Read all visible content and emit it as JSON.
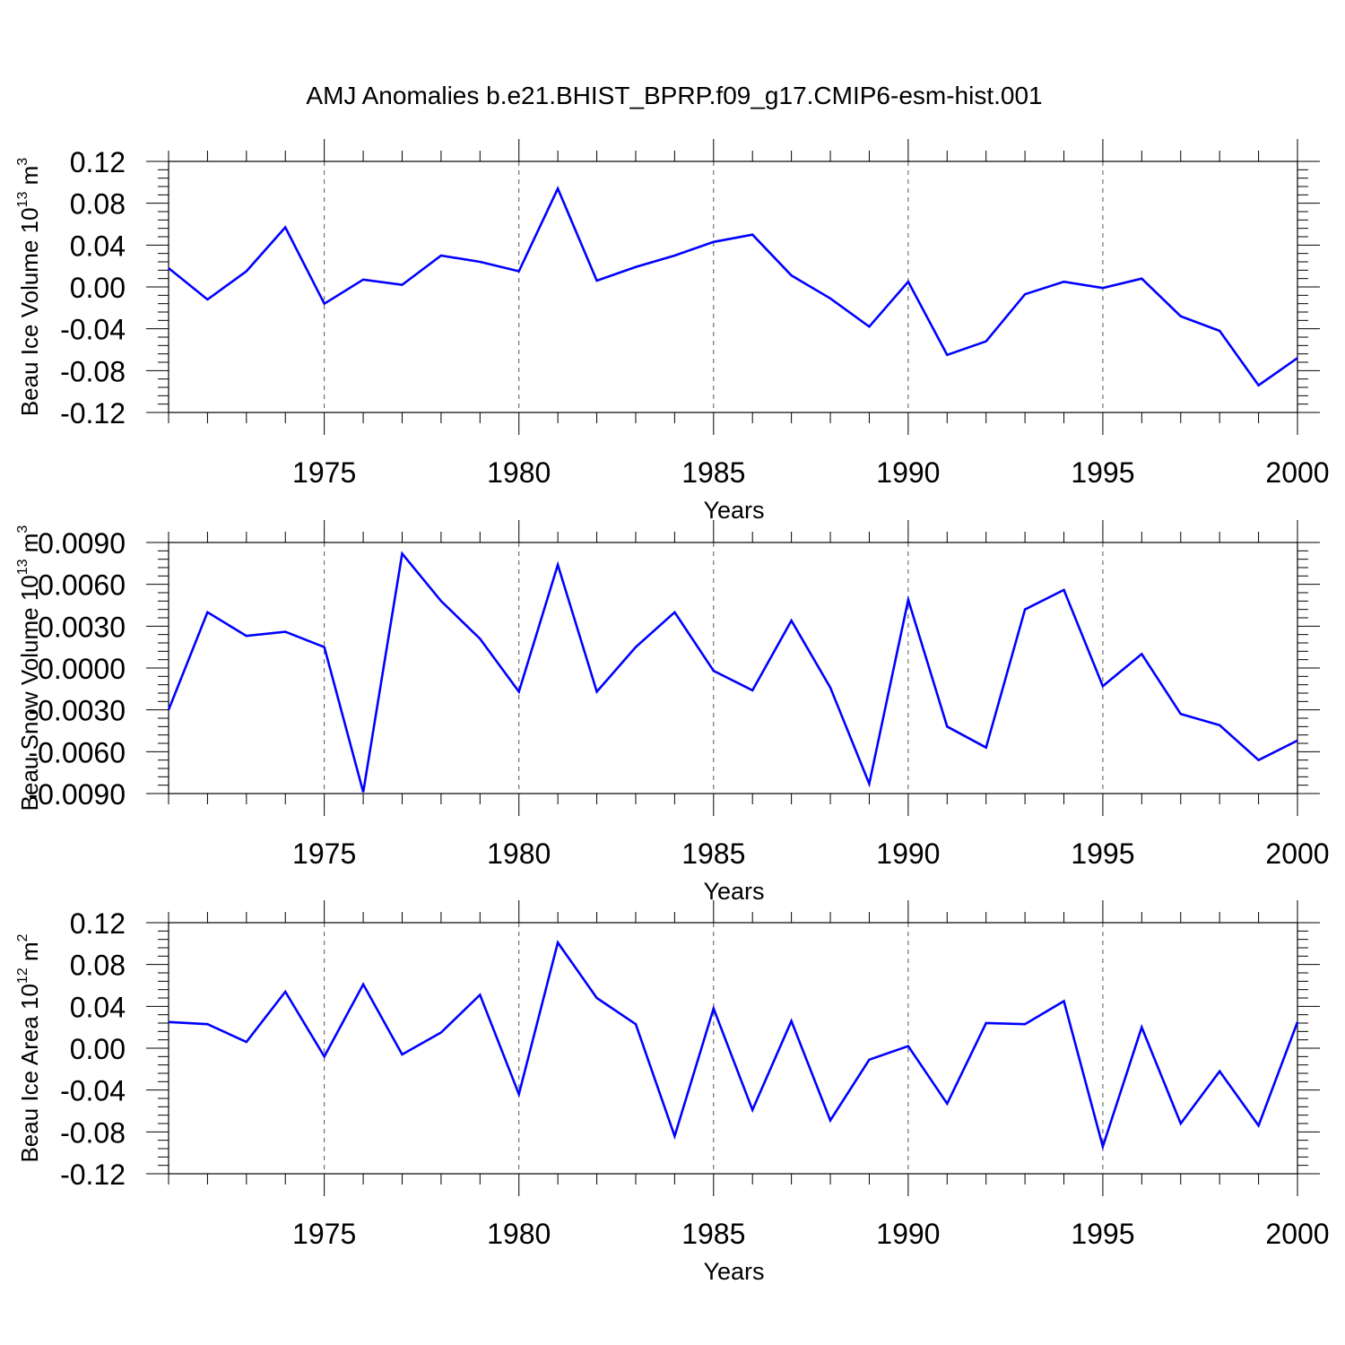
{
  "title": "AMJ Anomalies b.e21.BHIST_BPRP.f09_g17.CMIP6-esm-hist.001",
  "colors": {
    "line": "#0000ff",
    "axis": "#000000",
    "grid": "#555555",
    "background": "#ffffff"
  },
  "chart_data": [
    {
      "type": "line",
      "xlabel": "Years",
      "ylabel": {
        "base": "Beau Ice Volume 10",
        "exponent": "13",
        "unit": " m",
        "unit_exponent": "3"
      },
      "xlim": [
        1971,
        2000
      ],
      "xticks": [
        1975,
        1980,
        1985,
        1990,
        1995,
        2000
      ],
      "ylim": [
        -0.12,
        0.12
      ],
      "yticks": [
        -0.12,
        -0.08,
        -0.04,
        0.0,
        0.04,
        0.08,
        0.12
      ],
      "ytick_labels": [
        "-0.12",
        "-0.08",
        "-0.04",
        "0.00",
        "0.04",
        "0.08",
        "0.12"
      ],
      "grid": "vertical dashed at major x ticks",
      "x": [
        1971,
        1972,
        1973,
        1974,
        1975,
        1976,
        1977,
        1978,
        1979,
        1980,
        1981,
        1982,
        1983,
        1984,
        1985,
        1986,
        1987,
        1988,
        1989,
        1990,
        1991,
        1992,
        1993,
        1994,
        1995,
        1996,
        1997,
        1998,
        1999,
        2000
      ],
      "values": [
        0.018,
        -0.012,
        0.015,
        0.057,
        -0.016,
        0.007,
        0.002,
        0.03,
        0.024,
        0.015,
        0.094,
        0.006,
        0.019,
        0.03,
        0.043,
        0.05,
        0.011,
        -0.011,
        -0.038,
        0.005,
        -0.065,
        -0.052,
        -0.007,
        0.005,
        -0.001,
        0.008,
        -0.028,
        -0.042,
        -0.094,
        -0.068
      ]
    },
    {
      "type": "line",
      "xlabel": "Years",
      "ylabel": {
        "base": "Beau Snow Volume 10",
        "exponent": "13",
        "unit": " m",
        "unit_exponent": "3"
      },
      "xlim": [
        1971,
        2000
      ],
      "xticks": [
        1975,
        1980,
        1985,
        1990,
        1995,
        2000
      ],
      "ylim": [
        -0.009,
        0.009
      ],
      "yticks": [
        -0.009,
        -0.006,
        -0.003,
        0.0,
        0.003,
        0.006,
        0.009
      ],
      "ytick_labels": [
        "-0.0090",
        "-0.0060",
        "-0.0030",
        "0.0000",
        "0.0030",
        "0.0060",
        "0.0090"
      ],
      "grid": "vertical dashed at major x ticks",
      "x": [
        1971,
        1972,
        1973,
        1974,
        1975,
        1976,
        1977,
        1978,
        1979,
        1980,
        1981,
        1982,
        1983,
        1984,
        1985,
        1986,
        1987,
        1988,
        1989,
        1990,
        1991,
        1992,
        1993,
        1994,
        1995,
        1996,
        1997,
        1998,
        1999,
        2000
      ],
      "values": [
        -0.003,
        0.004,
        0.0023,
        0.0026,
        0.0015,
        -0.0089,
        0.0082,
        0.0048,
        0.0021,
        -0.0017,
        0.0074,
        -0.0017,
        0.0015,
        0.004,
        -0.0002,
        -0.0016,
        0.0034,
        -0.0014,
        -0.0083,
        0.0049,
        -0.0042,
        -0.0057,
        0.0042,
        0.0056,
        -0.0013,
        0.001,
        -0.0033,
        -0.0041,
        -0.0066,
        -0.0052
      ]
    },
    {
      "type": "line",
      "xlabel": "Years",
      "ylabel": {
        "base": "Beau Ice Area 10",
        "exponent": "12",
        "unit": " m",
        "unit_exponent": "2"
      },
      "xlim": [
        1971,
        2000
      ],
      "xticks": [
        1975,
        1980,
        1985,
        1990,
        1995,
        2000
      ],
      "ylim": [
        -0.12,
        0.12
      ],
      "yticks": [
        -0.12,
        -0.08,
        -0.04,
        0.0,
        0.04,
        0.08,
        0.12
      ],
      "ytick_labels": [
        "-0.12",
        "-0.08",
        "-0.04",
        "0.00",
        "0.04",
        "0.08",
        "0.12"
      ],
      "grid": "vertical dashed at major x ticks",
      "x": [
        1971,
        1972,
        1973,
        1974,
        1975,
        1976,
        1977,
        1978,
        1979,
        1980,
        1981,
        1982,
        1983,
        1984,
        1985,
        1986,
        1987,
        1988,
        1989,
        1990,
        1991,
        1992,
        1993,
        1994,
        1995,
        1996,
        1997,
        1998,
        1999,
        2000
      ],
      "values": [
        0.025,
        0.023,
        0.006,
        0.054,
        -0.008,
        0.061,
        -0.006,
        0.015,
        0.051,
        -0.044,
        0.101,
        0.048,
        0.023,
        -0.084,
        0.038,
        -0.059,
        0.026,
        -0.069,
        -0.011,
        0.002,
        -0.053,
        0.024,
        0.023,
        0.045,
        -0.094,
        0.02,
        -0.072,
        -0.022,
        -0.074,
        0.025
      ]
    }
  ]
}
